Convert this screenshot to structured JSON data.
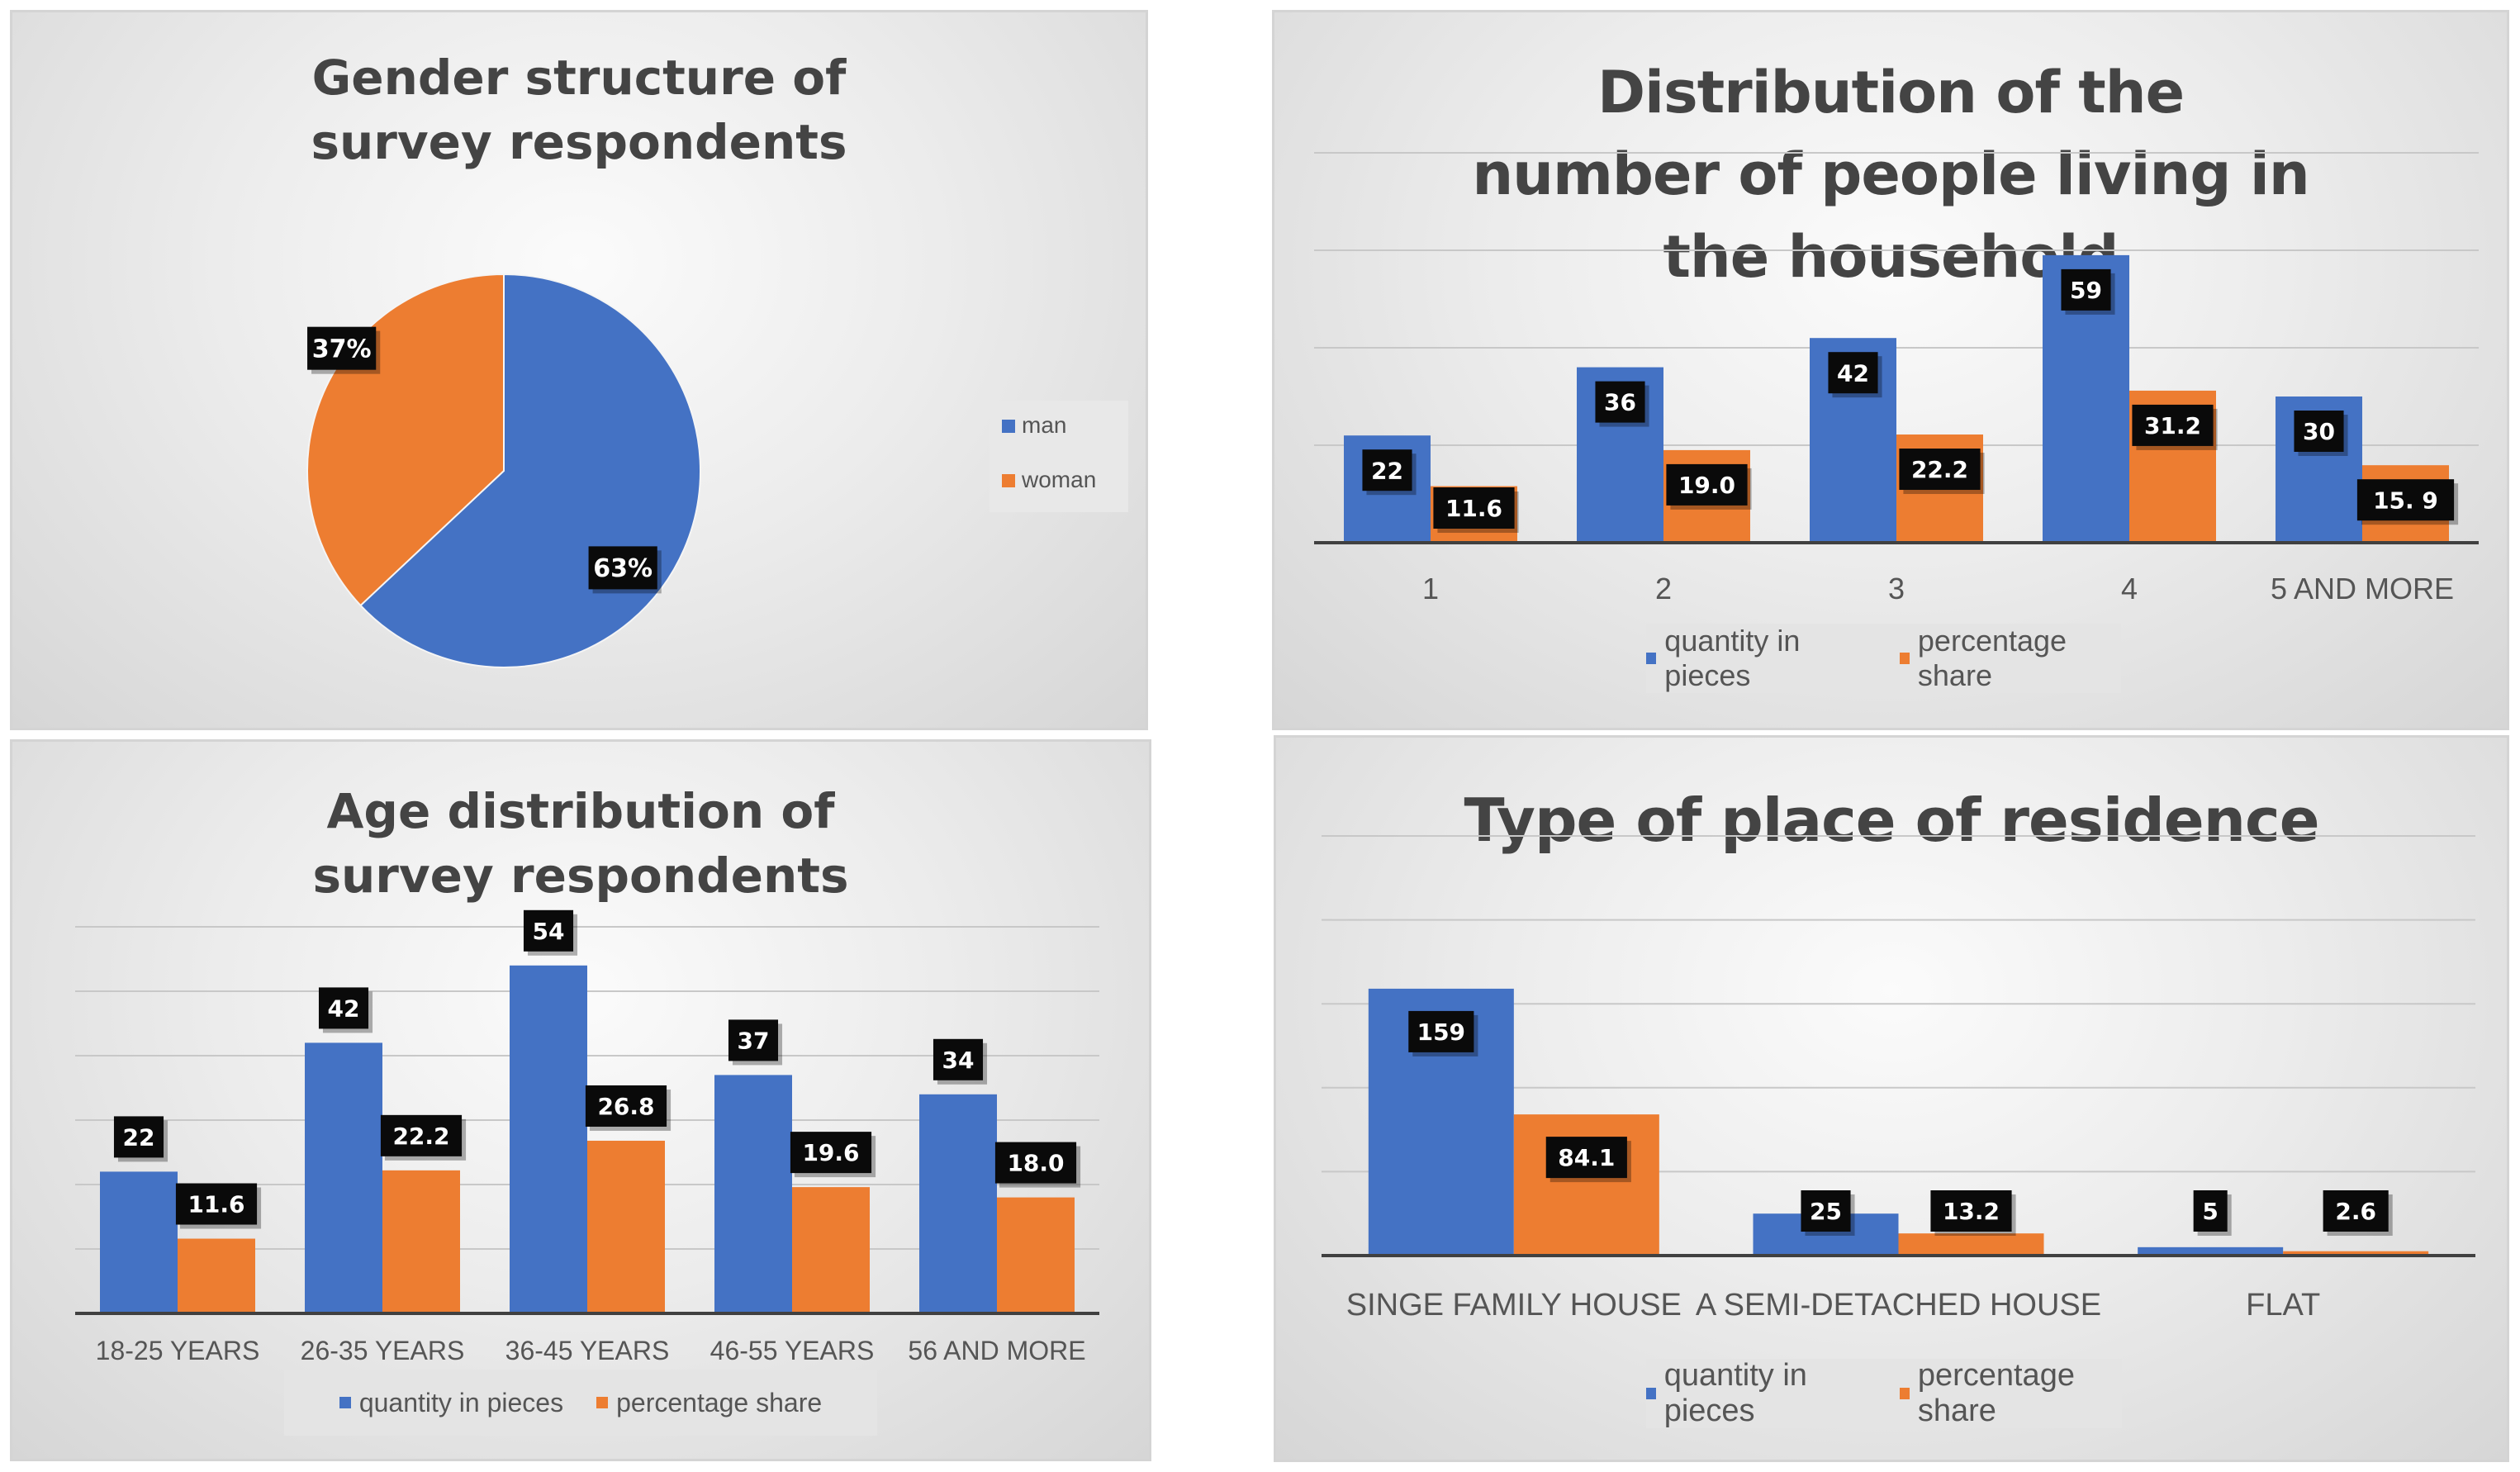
{
  "colors": {
    "series1": "#4472C4",
    "series2": "#ED7D31",
    "label_bg": "#0a0a0a",
    "grid": "#c8c8c8",
    "axis": "#404040"
  },
  "chart_data": [
    {
      "type": "pie",
      "title": "Gender structure of survey respondents",
      "labels": [
        "man",
        "woman"
      ],
      "values": [
        63,
        37
      ],
      "data_labels": [
        "63%",
        "37%"
      ],
      "legend": "right"
    },
    {
      "type": "bar",
      "title": "Distribution of the number of people living in the household",
      "categories": [
        "1",
        "2",
        "3",
        "4",
        "5 AND MORE"
      ],
      "series": [
        {
          "name": "quantity in pieces",
          "values": [
            22,
            36,
            42,
            59,
            30
          ],
          "labels": [
            "22",
            "36",
            "42",
            "59",
            "30"
          ]
        },
        {
          "name": "percentage share",
          "values": [
            11.6,
            19.0,
            22.2,
            31.2,
            15.9
          ],
          "labels": [
            "11.6",
            "19.0",
            "22.2",
            "31.2",
            "15. 9"
          ]
        }
      ],
      "ylim": [
        0,
        80
      ],
      "grid": true,
      "legend": "bottom"
    },
    {
      "type": "bar",
      "title": "Age distribution of survey respondents",
      "categories": [
        "18-25 YEARS",
        "26-35 YEARS",
        "36-45 YEARS",
        "46-55 YEARS",
        "56 AND MORE"
      ],
      "series": [
        {
          "name": "quantity in pieces",
          "values": [
            22,
            42,
            54,
            37,
            34
          ],
          "labels": [
            "22",
            "42",
            "54",
            "37",
            "34"
          ]
        },
        {
          "name": "percentage share",
          "values": [
            11.6,
            22.2,
            26.8,
            19.6,
            18.0
          ],
          "labels": [
            "11.6",
            "22.2",
            "26.8",
            "19.6",
            "18.0"
          ]
        }
      ],
      "ylim": [
        0,
        60
      ],
      "grid": true,
      "legend": "bottom"
    },
    {
      "type": "bar",
      "title": "Type of place of residence",
      "categories": [
        "SINGE FAMILY HOUSE",
        "A SEMI-DETACHED HOUSE",
        "FLAT"
      ],
      "series": [
        {
          "name": "quantity in pieces",
          "values": [
            159,
            25,
            5
          ],
          "labels": [
            "159",
            "25",
            "5"
          ]
        },
        {
          "name": "percentage share",
          "values": [
            84.1,
            13.2,
            2.6
          ],
          "labels": [
            "84.1",
            "13.2",
            "2.6"
          ]
        }
      ],
      "ylim": [
        0,
        250
      ],
      "grid": true,
      "legend": "bottom"
    }
  ]
}
